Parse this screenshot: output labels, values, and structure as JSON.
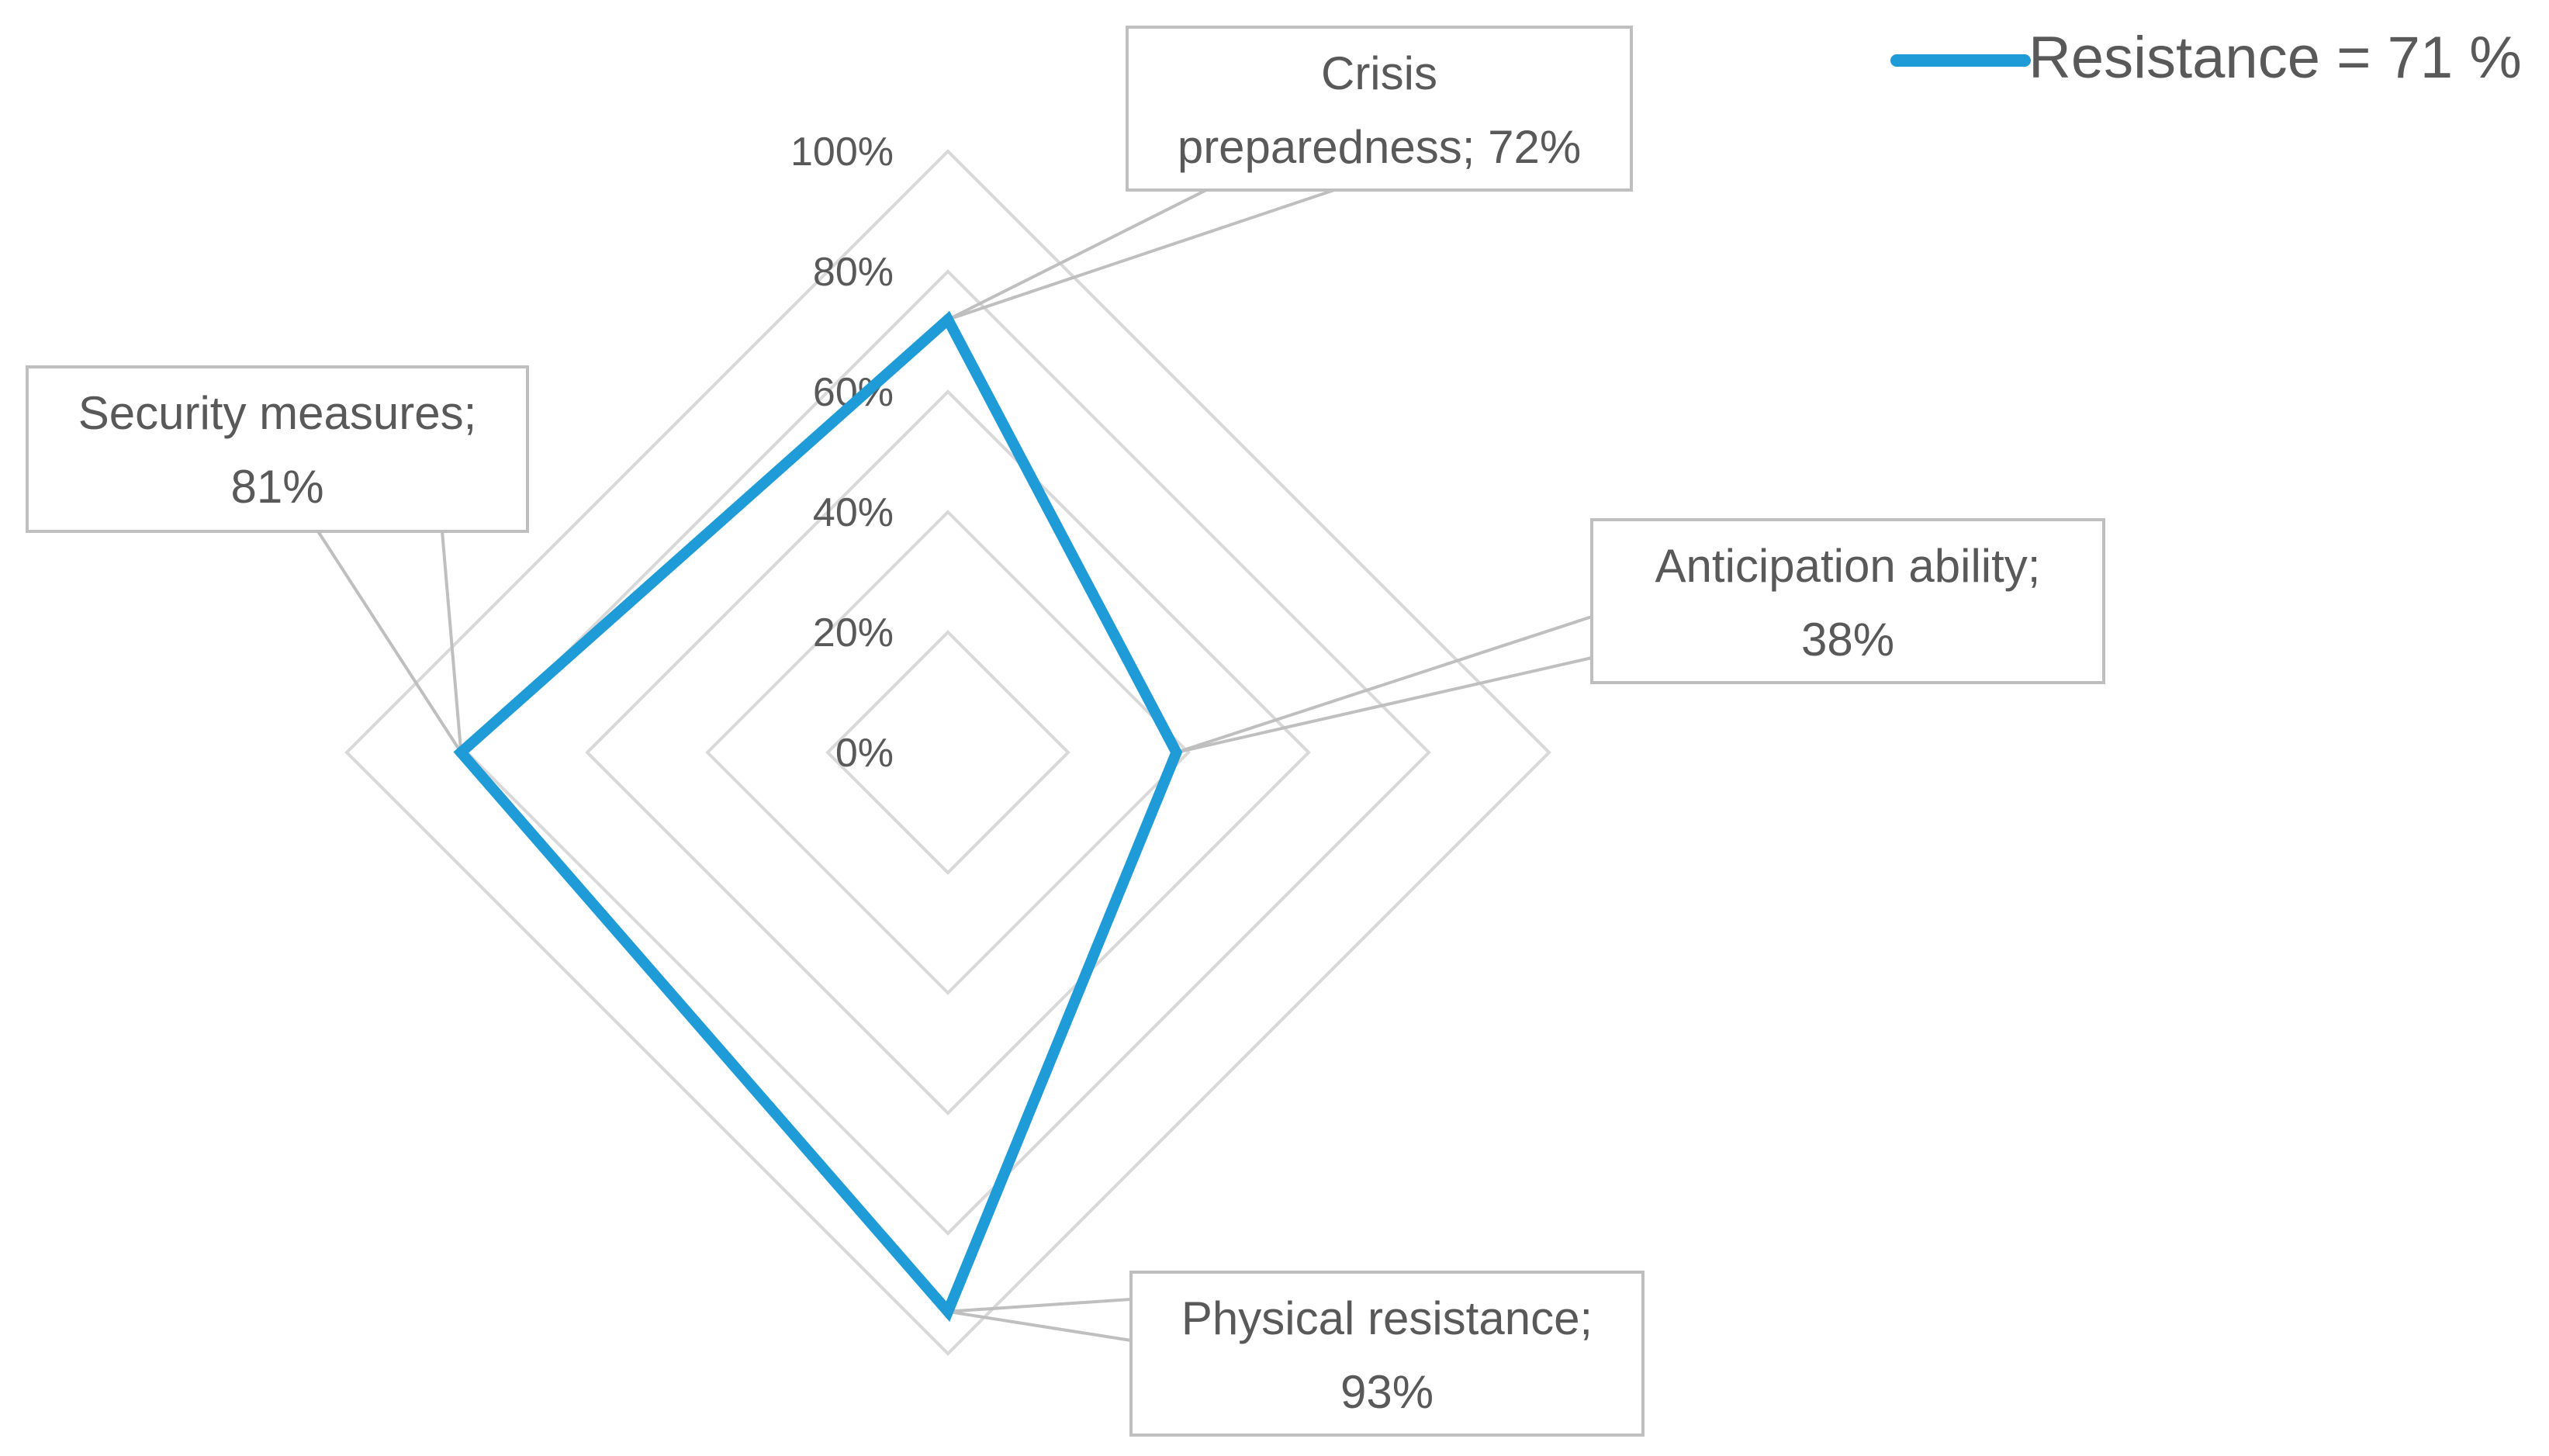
{
  "chart_data": {
    "type": "radar",
    "title": "",
    "axes": [
      "Crisis preparedness",
      "Anticipation ability",
      "Physical resistance",
      "Security measures"
    ],
    "series": [
      {
        "name": "Resistance = 71 %",
        "values": [
          72,
          38,
          93,
          81
        ],
        "color": "#1f9bd7"
      }
    ],
    "rlim": [
      0,
      100
    ],
    "ticks": [
      0,
      20,
      40,
      60,
      80,
      100
    ],
    "tick_labels": [
      "0%",
      "20%",
      "40%",
      "60%",
      "80%",
      "100%"
    ],
    "data_labels": [
      "Crisis preparedness; 72%",
      "Anticipation ability; 38%",
      "Physical resistance; 93%",
      "Security measures; 81%"
    ],
    "grid": true,
    "legend_position": "top-right",
    "grid_color": "#d9d9d9",
    "label_text_color": "#595959"
  }
}
